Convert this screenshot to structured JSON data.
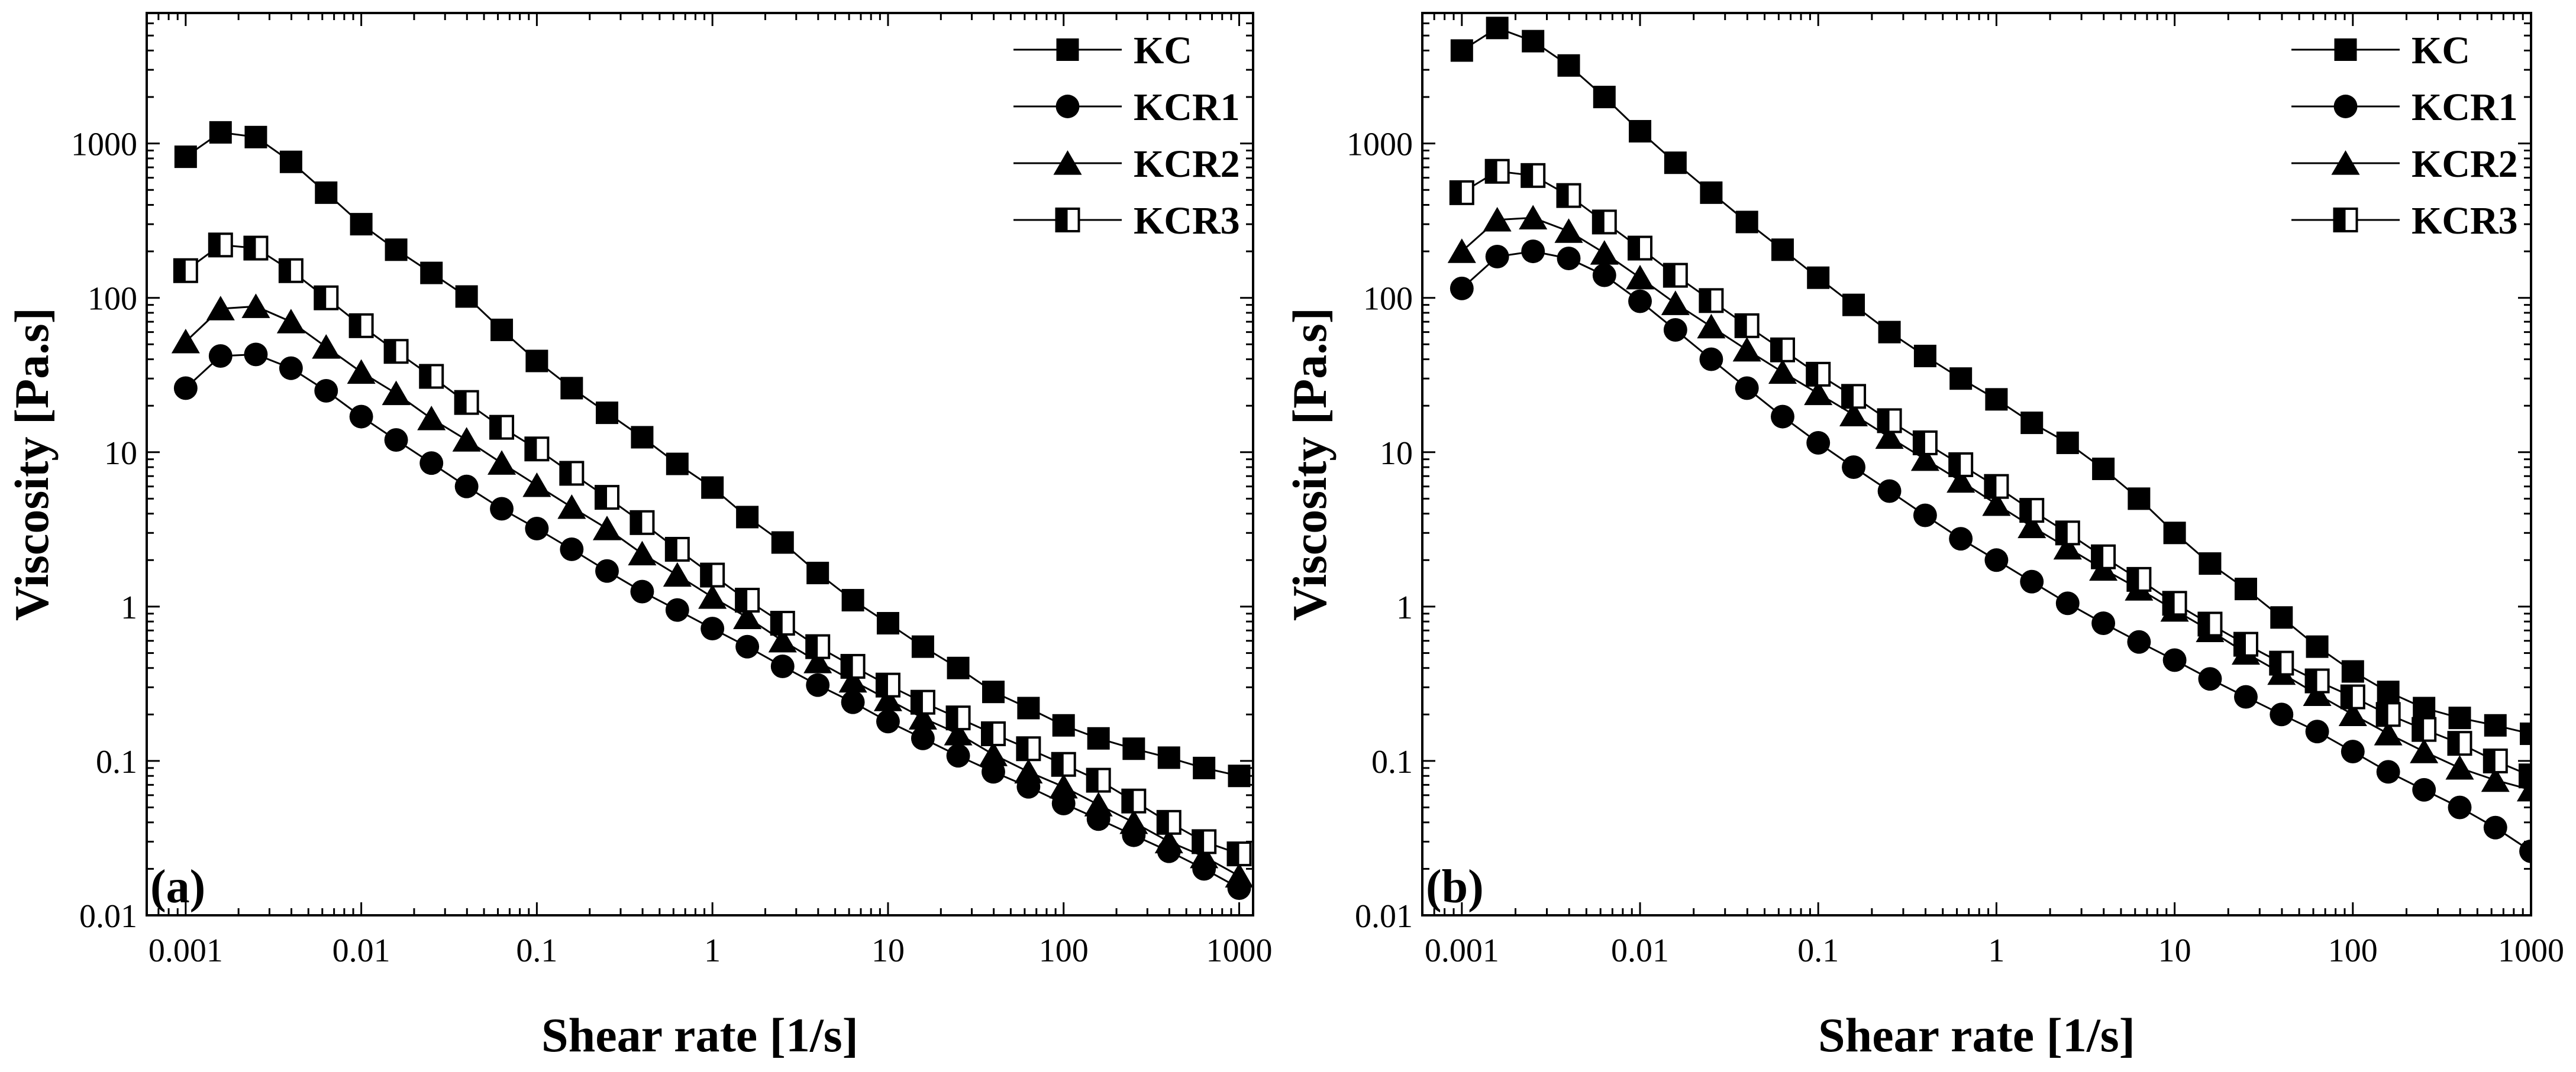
{
  "chart_data": [
    {
      "type": "line",
      "panel_label": "(a)",
      "xlabel": "Shear rate [1/s]",
      "ylabel": "Viscosity [Pa.s]",
      "xscale": "log",
      "yscale": "log",
      "xlim": [
        0.0006,
        1200
      ],
      "ylim": [
        0.01,
        7000
      ],
      "xticks": [
        "0.001",
        "0.01",
        "0.1",
        "1",
        "10",
        "100",
        "1000"
      ],
      "yticks": [
        "0.01",
        "0.1",
        "1",
        "10",
        "100",
        "1000"
      ],
      "legend_position": "top-right",
      "x": [
        0.001,
        0.00158,
        0.00251,
        0.00398,
        0.00631,
        0.01,
        0.0158,
        0.0251,
        0.0398,
        0.0631,
        0.1,
        0.158,
        0.251,
        0.398,
        0.631,
        1,
        1.58,
        2.51,
        3.98,
        6.31,
        10,
        15.8,
        25.1,
        39.8,
        63.1,
        100,
        158,
        251,
        398,
        631,
        1000
      ],
      "series": [
        {
          "name": "KC",
          "marker": "filled-square",
          "values": [
            820,
            1180,
            1100,
            760,
            480,
            300,
            205,
            145,
            102,
            62,
            39,
            26,
            18,
            12.5,
            8.4,
            5.9,
            3.8,
            2.6,
            1.65,
            1.1,
            0.78,
            0.55,
            0.4,
            0.28,
            0.22,
            0.17,
            0.14,
            0.12,
            0.105,
            0.09,
            0.08
          ]
        },
        {
          "name": "KCR1",
          "marker": "filled-circle",
          "values": [
            26,
            42,
            43,
            35,
            25,
            17,
            12,
            8.5,
            6.0,
            4.3,
            3.2,
            2.35,
            1.7,
            1.25,
            0.95,
            0.72,
            0.55,
            0.41,
            0.31,
            0.24,
            0.18,
            0.14,
            0.108,
            0.085,
            0.068,
            0.053,
            0.042,
            0.033,
            0.026,
            0.02,
            0.015
          ]
        },
        {
          "name": "KCR2",
          "marker": "filled-triangle",
          "values": [
            52,
            85,
            88,
            70,
            48,
            33,
            24,
            16.5,
            12,
            8.5,
            6.1,
            4.4,
            3.2,
            2.2,
            1.6,
            1.15,
            0.85,
            0.6,
            0.44,
            0.33,
            0.25,
            0.19,
            0.15,
            0.11,
            0.085,
            0.068,
            0.052,
            0.04,
            0.03,
            0.024,
            0.018
          ]
        },
        {
          "name": "KCR3",
          "marker": "half-filled-square",
          "values": [
            150,
            220,
            210,
            150,
            100,
            66,
            45,
            31,
            21,
            14.5,
            10.5,
            7.3,
            5.1,
            3.5,
            2.35,
            1.6,
            1.1,
            0.78,
            0.55,
            0.41,
            0.31,
            0.24,
            0.19,
            0.15,
            0.12,
            0.095,
            0.075,
            0.055,
            0.04,
            0.03,
            0.025
          ]
        }
      ]
    },
    {
      "type": "line",
      "panel_label": "(b)",
      "xlabel": "Shear rate [1/s]",
      "ylabel": "Viscosity [Pa.s]",
      "xscale": "log",
      "yscale": "log",
      "xlim": [
        0.0006,
        1000
      ],
      "ylim": [
        0.01,
        7000
      ],
      "xticks": [
        "0.001",
        "0.01",
        "0.1",
        "1",
        "10",
        "100",
        "1000"
      ],
      "yticks": [
        "0.01",
        "0.1",
        "1",
        "10",
        "100",
        "1000"
      ],
      "legend_position": "top-right",
      "x": [
        0.001,
        0.00158,
        0.00251,
        0.00398,
        0.00631,
        0.01,
        0.0158,
        0.0251,
        0.0398,
        0.0631,
        0.1,
        0.158,
        0.251,
        0.398,
        0.631,
        1,
        1.58,
        2.51,
        3.98,
        6.31,
        10,
        15.8,
        25.1,
        39.8,
        63.1,
        100,
        158,
        251,
        398,
        631,
        1000
      ],
      "series": [
        {
          "name": "KC",
          "marker": "filled-square",
          "values": [
            4000,
            5600,
            4600,
            3200,
            2000,
            1200,
            750,
            480,
            310,
            205,
            135,
            90,
            60,
            42,
            30,
            22,
            15.5,
            11.5,
            7.8,
            5.0,
            3.0,
            1.9,
            1.3,
            0.85,
            0.55,
            0.38,
            0.28,
            0.22,
            0.19,
            0.17,
            0.15
          ]
        },
        {
          "name": "KCR1",
          "marker": "filled-circle",
          "values": [
            115,
            185,
            200,
            180,
            140,
            95,
            62,
            40,
            26,
            17,
            11.5,
            8.0,
            5.6,
            3.9,
            2.75,
            2.0,
            1.45,
            1.05,
            0.78,
            0.59,
            0.45,
            0.34,
            0.26,
            0.2,
            0.155,
            0.115,
            0.085,
            0.065,
            0.05,
            0.037,
            0.026
          ]
        },
        {
          "name": "KCR2",
          "marker": "filled-triangle",
          "values": [
            200,
            320,
            330,
            270,
            195,
            135,
            92,
            65,
            46,
            33,
            24,
            17.5,
            12.5,
            9.0,
            6.5,
            4.6,
            3.3,
            2.4,
            1.75,
            1.3,
            0.95,
            0.7,
            0.5,
            0.37,
            0.27,
            0.2,
            0.15,
            0.115,
            0.09,
            0.075,
            0.065
          ]
        },
        {
          "name": "KCR3",
          "marker": "half-filled-square",
          "values": [
            480,
            660,
            620,
            460,
            310,
            210,
            140,
            96,
            66,
            46,
            32,
            23,
            16,
            11.5,
            8.3,
            6.0,
            4.2,
            3.0,
            2.1,
            1.5,
            1.05,
            0.77,
            0.57,
            0.43,
            0.33,
            0.26,
            0.2,
            0.16,
            0.13,
            0.1,
            0.08
          ]
        }
      ]
    }
  ]
}
